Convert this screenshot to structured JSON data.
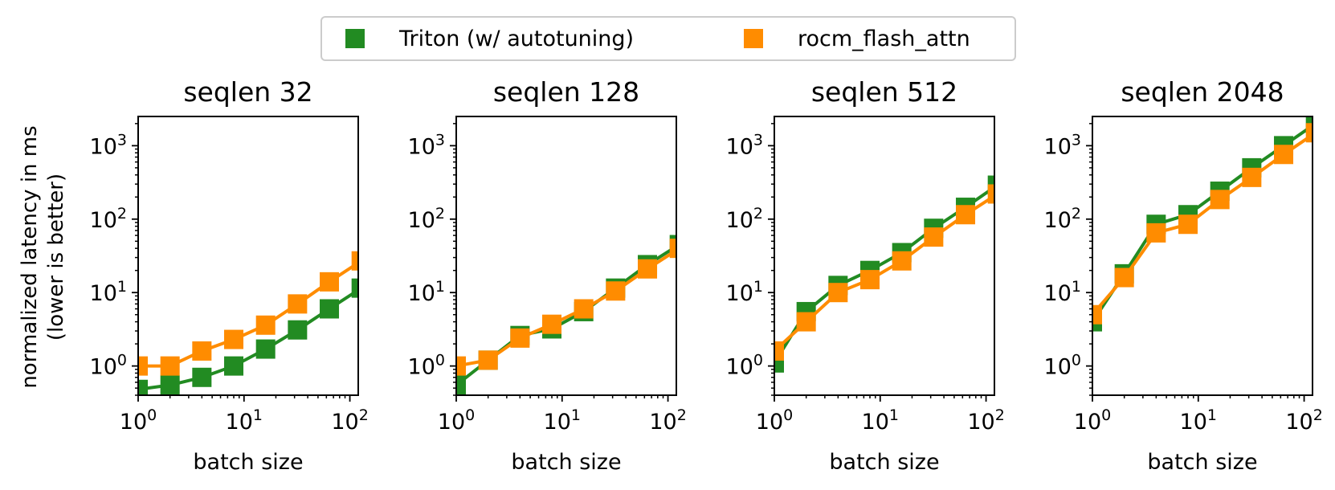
{
  "legend": {
    "items": [
      {
        "label": "Triton (w/ autotuning)",
        "color": "#228b22"
      },
      {
        "label": "rocm_flash_attn",
        "color": "#ff8c00"
      }
    ]
  },
  "shared_ylabel": [
    "normalized latency in ms",
    "(lower is better)"
  ],
  "chart_data": [
    {
      "type": "line",
      "title": "seqlen 32",
      "xlabel": "batch size",
      "xscale": "log",
      "yscale": "log",
      "xlim": [
        1,
        120
      ],
      "ylim": [
        0.4,
        2500
      ],
      "x": [
        1,
        2,
        4,
        8,
        16,
        32,
        64,
        128
      ],
      "series": [
        {
          "name": "Triton (w/ autotuning)",
          "color": "#228b22",
          "values": [
            0.48,
            0.55,
            0.7,
            1.0,
            1.7,
            3.1,
            6.0,
            11.5
          ]
        },
        {
          "name": "rocm_flash_attn",
          "color": "#ff8c00",
          "values": [
            1.0,
            1.0,
            1.6,
            2.3,
            3.6,
            7.0,
            14.0,
            27.0
          ]
        }
      ]
    },
    {
      "type": "line",
      "title": "seqlen 128",
      "xlabel": "batch size",
      "xscale": "log",
      "yscale": "log",
      "xlim": [
        1,
        120
      ],
      "ylim": [
        0.4,
        2500
      ],
      "x": [
        1,
        2,
        4,
        8,
        16,
        32,
        64,
        128
      ],
      "series": [
        {
          "name": "Triton (w/ autotuning)",
          "color": "#228b22",
          "values": [
            0.55,
            1.2,
            2.6,
            3.2,
            5.5,
            11.5,
            24.0,
            45.0
          ]
        },
        {
          "name": "rocm_flash_attn",
          "color": "#ff8c00",
          "values": [
            1.0,
            1.2,
            2.4,
            3.7,
            6.0,
            10.5,
            21.0,
            40.0
          ]
        }
      ]
    },
    {
      "type": "line",
      "title": "seqlen 512",
      "xlabel": "batch size",
      "xscale": "log",
      "yscale": "log",
      "xlim": [
        1,
        120
      ],
      "ylim": [
        0.4,
        2500
      ],
      "x": [
        1,
        2,
        4,
        8,
        16,
        32,
        64,
        128
      ],
      "series": [
        {
          "name": "Triton (w/ autotuning)",
          "color": "#228b22",
          "values": [
            1.1,
            5.5,
            12.5,
            20.0,
            35.0,
            75.0,
            145.0,
            290.0
          ]
        },
        {
          "name": "rocm_flash_attn",
          "color": "#ff8c00",
          "values": [
            1.6,
            4.0,
            10.0,
            15.0,
            27.0,
            57.0,
            115.0,
            220.0
          ]
        }
      ]
    },
    {
      "type": "line",
      "title": "seqlen 2048",
      "xlabel": "batch size",
      "xscale": "log",
      "yscale": "log",
      "xlim": [
        1,
        120
      ],
      "ylim": [
        0.4,
        2500
      ],
      "x": [
        1,
        2,
        4,
        8,
        16,
        32,
        64,
        128
      ],
      "series": [
        {
          "name": "Triton (w/ autotuning)",
          "color": "#228b22",
          "values": [
            4.0,
            18.0,
            85.0,
            115.0,
            240.0,
            500.0,
            1000.0,
            2000.0
          ]
        },
        {
          "name": "rocm_flash_attn",
          "color": "#ff8c00",
          "values": [
            5.0,
            16.0,
            65.0,
            85.0,
            185.0,
            370.0,
            760.0,
            1500.0
          ]
        }
      ]
    }
  ]
}
